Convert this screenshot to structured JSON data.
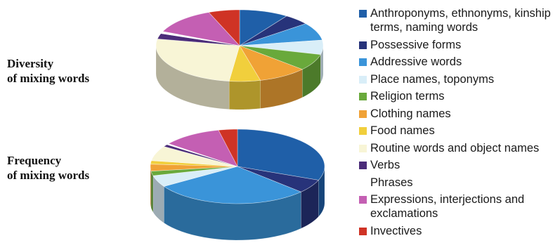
{
  "rows": [
    {
      "line1": "Diversity",
      "line2": "of mixing words"
    },
    {
      "line1": "Frequency",
      "line2": "of mixing words"
    }
  ],
  "chart_data": [
    {
      "type": "pie",
      "title": "",
      "categories": [
        "Anthroponyms, ethnonyms, kinship terms, naming words",
        "Possessive forms",
        "Addressive words",
        "Place names, toponyms",
        "Religion terms",
        "Clothing names",
        "Food names",
        "Routine words and object names",
        "Verbs",
        "Phrases",
        "Expressions, interjections and exclamations",
        "Invectives"
      ],
      "values": [
        9.5,
        5,
        8,
        6.5,
        7.5,
        9.5,
        6,
        26,
        2.5,
        1,
        12.5,
        6
      ],
      "colors": [
        "#1f5fa8",
        "#27337a",
        "#3a94d9",
        "#d9eef8",
        "#69a93b",
        "#f0a236",
        "#f1cf3c",
        "#f8f5d6",
        "#4b2c79",
        "#ffffff",
        "#c45fb3",
        "#cf3325"
      ],
      "legend": "right"
    },
    {
      "type": "pie",
      "title": "",
      "categories": [
        "Anthroponyms, ethnonyms, kinship terms, naming words",
        "Possessive forms",
        "Addressive words",
        "Place names, toponyms",
        "Religion terms",
        "Clothing names",
        "Food names",
        "Routine words and object names",
        "Verbs",
        "Phrases",
        "Expressions, interjections and exclamations",
        "Invectives"
      ],
      "values": [
        31,
        6,
        29,
        5,
        2,
        3,
        1.5,
        6.5,
        1,
        0.5,
        11,
        3.5
      ],
      "colors": [
        "#1f5fa8",
        "#27337a",
        "#3a94d9",
        "#d9eef8",
        "#69a93b",
        "#f0a236",
        "#f1cf3c",
        "#f8f5d6",
        "#4b2c79",
        "#ffffff",
        "#c45fb3",
        "#cf3325"
      ],
      "legend": "right"
    }
  ],
  "legend": [
    {
      "line1": "Anthroponyms, ethnonyms, kinship",
      "line2": "terms, naming words",
      "color": "#1f5fa8"
    },
    {
      "line1": "Possessive forms",
      "line2": "",
      "color": "#27337a"
    },
    {
      "line1": "Addressive words",
      "line2": "",
      "color": "#3a94d9"
    },
    {
      "line1": "Place names, toponyms",
      "line2": "",
      "color": "#d9eef8"
    },
    {
      "line1": "Religion terms",
      "line2": "",
      "color": "#69a93b"
    },
    {
      "line1": "Clothing names",
      "line2": "",
      "color": "#f0a236"
    },
    {
      "line1": "Food names",
      "line2": "",
      "color": "#f1cf3c"
    },
    {
      "line1": "Routine words and object names",
      "line2": "",
      "color": "#f8f5d6"
    },
    {
      "line1": "Verbs",
      "line2": "",
      "color": "#4b2c79"
    },
    {
      "line1": "Phrases",
      "line2": "",
      "color": "#ffffff"
    },
    {
      "line1": "Expressions, interjections and",
      "line2": "exclamations",
      "color": "#c45fb3"
    },
    {
      "line1": "Invectives",
      "line2": "",
      "color": "#cf3325"
    }
  ]
}
